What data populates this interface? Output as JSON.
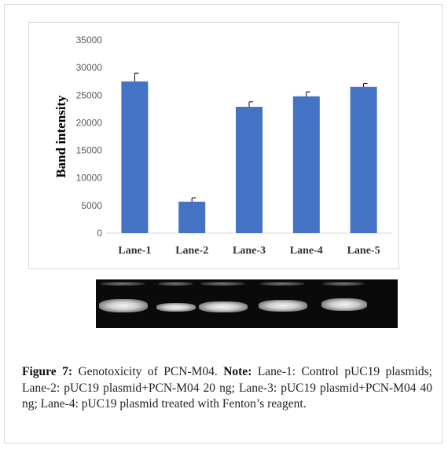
{
  "chart_data": {
    "type": "bar",
    "categories": [
      "Lane-1",
      "Lane-2",
      "Lane-3",
      "Lane-4",
      "Lane-5"
    ],
    "values": [
      27500,
      5700,
      22900,
      24800,
      26500
    ],
    "errors": [
      1500,
      700,
      900,
      800,
      600
    ],
    "ylabel": "Band intensity",
    "xlabel": "",
    "ylim": [
      0,
      35000
    ],
    "yticks": [
      "35000",
      "30000",
      "25000",
      "20000",
      "15000",
      "10000",
      "5000",
      "0"
    ],
    "bar_color": "#4472c4",
    "grid": false
  },
  "gel": {
    "lanes": 5,
    "background_color": "#0a0a0a"
  },
  "caption": {
    "figure_label": "Figure 7:",
    "figure_text": " Genotoxicity of PCN-M04. ",
    "note_label": "Note:",
    "note_text": " Lane-1: Control pUC19 plasmids; Lane-2: pUC19 plasmid+PCN-M04 20 ng; Lane-3: pUC19 plasmid+PCN-M04 40 ng; Lane-4: pUC19 plasmid treated with Fenton’s reagent."
  }
}
